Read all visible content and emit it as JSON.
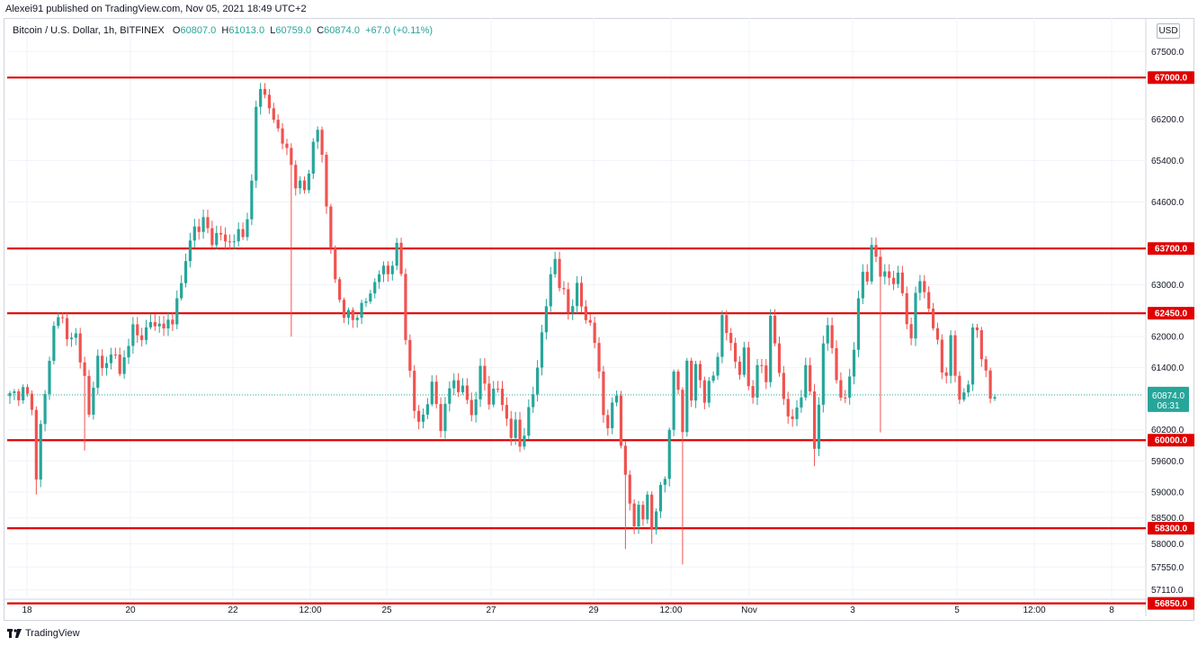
{
  "publisher_line": "Alexei91 published on TradingView.com, Nov 05, 2021 18:49 UTC+2",
  "legend": {
    "symbol": "Bitcoin / U.S. Dollar, 1h, BITFINEX",
    "open_label": "O",
    "open": "60807.0",
    "high_label": "H",
    "high": "61013.0",
    "low_label": "L",
    "low": "60759.0",
    "close_label": "C",
    "close": "60874.0",
    "change": "+67.0 (+0.11%)"
  },
  "currency_badge": "USD",
  "footer": {
    "brand": "TradingView",
    "icon": "tradingview-logo-icon"
  },
  "colors": {
    "up": "#26a69a",
    "down": "#ef5350",
    "level_line": "#e00000",
    "last_price": "#26a69a"
  },
  "chart_data": {
    "type": "candlestick",
    "symbol": "BTCUSD",
    "timeframe": "1h",
    "ylim": [
      56600,
      68150
    ],
    "y_ticks": [
      67500,
      66200,
      65400,
      64600,
      63000,
      62000,
      61400,
      60200,
      59600,
      59000,
      58500,
      58000,
      57550,
      57110
    ],
    "x_ticks": [
      "18",
      "20",
      "22",
      "12:00",
      "25",
      "27",
      "29",
      "12:00",
      "Nov",
      "3",
      "5",
      "12:00",
      "8"
    ],
    "levels": [
      67000,
      63700,
      62450,
      60000,
      58300,
      56850
    ],
    "level_labels": [
      "67000.0",
      "63700.0",
      "62450.0",
      "60000.0",
      "58300.0",
      "56850.0"
    ],
    "last_price": 60874,
    "last_price_label": "60874.0",
    "countdown": "06:31",
    "close_path": [
      [
        0,
        60850
      ],
      [
        3,
        60950
      ],
      [
        5,
        60700
      ],
      [
        6,
        59200
      ],
      [
        7,
        60300
      ],
      [
        9,
        61500
      ],
      [
        10,
        62300
      ],
      [
        12,
        62300
      ],
      [
        14,
        61900
      ],
      [
        15,
        62000
      ],
      [
        17,
        61200
      ],
      [
        18,
        60500
      ],
      [
        19,
        61000
      ],
      [
        20,
        61600
      ],
      [
        22,
        61400
      ],
      [
        24,
        61800
      ],
      [
        25,
        61200
      ],
      [
        27,
        61900
      ],
      [
        28,
        62200
      ],
      [
        30,
        61900
      ],
      [
        32,
        62400
      ],
      [
        33,
        62100
      ],
      [
        35,
        62300
      ],
      [
        37,
        62200
      ],
      [
        38,
        62800
      ],
      [
        39,
        63000
      ],
      [
        40,
        63500
      ],
      [
        42,
        64100
      ],
      [
        44,
        64200
      ],
      [
        46,
        63900
      ],
      [
        48,
        63950
      ],
      [
        50,
        63800
      ],
      [
        52,
        64000
      ],
      [
        53,
        63900
      ],
      [
        55,
        64900
      ],
      [
        56,
        66400
      ],
      [
        57,
        66900
      ],
      [
        58,
        66600
      ],
      [
        60,
        66200
      ],
      [
        62,
        65800
      ],
      [
        64,
        65300
      ],
      [
        65,
        65000
      ],
      [
        67,
        64800
      ],
      [
        69,
        65700
      ],
      [
        70,
        66000
      ],
      [
        71,
        65500
      ],
      [
        72,
        64500
      ],
      [
        73,
        63800
      ],
      [
        74,
        63000
      ],
      [
        75,
        62700
      ],
      [
        76,
        62500
      ],
      [
        78,
        62300
      ],
      [
        80,
        62600
      ],
      [
        82,
        62800
      ],
      [
        84,
        63300
      ],
      [
        86,
        63200
      ],
      [
        87,
        63500
      ],
      [
        88,
        63700
      ],
      [
        89,
        63200
      ],
      [
        90,
        62000
      ],
      [
        91,
        61300
      ],
      [
        92,
        60600
      ],
      [
        93,
        60300
      ],
      [
        94,
        60500
      ],
      [
        95,
        60800
      ],
      [
        96,
        61000
      ],
      [
        97,
        60700
      ],
      [
        98,
        60300
      ],
      [
        99,
        60600
      ],
      [
        100,
        61000
      ],
      [
        101,
        61200
      ],
      [
        102,
        60900
      ],
      [
        103,
        61100
      ],
      [
        104,
        60700
      ],
      [
        105,
        60500
      ],
      [
        106,
        60900
      ],
      [
        107,
        61300
      ],
      [
        108,
        61100
      ],
      [
        109,
        60800
      ],
      [
        110,
        60900
      ],
      [
        111,
        61000
      ],
      [
        112,
        60700
      ],
      [
        113,
        60400
      ],
      [
        114,
        60100
      ],
      [
        115,
        60300
      ],
      [
        116,
        59900
      ],
      [
        117,
        60200
      ],
      [
        118,
        60500
      ],
      [
        119,
        60900
      ],
      [
        120,
        61500
      ],
      [
        121,
        62000
      ],
      [
        122,
        62600
      ],
      [
        123,
        63200
      ],
      [
        124,
        63500
      ],
      [
        125,
        63000
      ],
      [
        126,
        62800
      ],
      [
        127,
        62500
      ],
      [
        128,
        62700
      ],
      [
        129,
        62900
      ],
      [
        130,
        62600
      ],
      [
        131,
        62400
      ],
      [
        132,
        62200
      ],
      [
        133,
        61900
      ],
      [
        134,
        61300
      ],
      [
        135,
        60500
      ],
      [
        136,
        60300
      ],
      [
        137,
        60600
      ],
      [
        138,
        60900
      ],
      [
        139,
        60000
      ],
      [
        140,
        59200
      ],
      [
        141,
        58800
      ],
      [
        142,
        58400
      ],
      [
        143,
        58700
      ],
      [
        144,
        58500
      ],
      [
        145,
        58900
      ],
      [
        146,
        58300
      ],
      [
        147,
        58700
      ],
      [
        148,
        59000
      ],
      [
        149,
        59300
      ],
      [
        150,
        60300
      ],
      [
        151,
        61200
      ],
      [
        152,
        61000
      ],
      [
        153,
        60200
      ],
      [
        154,
        61500
      ],
      [
        155,
        60800
      ],
      [
        156,
        61400
      ],
      [
        157,
        61200
      ],
      [
        158,
        60800
      ],
      [
        159,
        61000
      ],
      [
        160,
        61300
      ],
      [
        161,
        61700
      ],
      [
        162,
        62300
      ],
      [
        163,
        62100
      ],
      [
        164,
        61900
      ],
      [
        165,
        61500
      ],
      [
        166,
        61300
      ],
      [
        167,
        61700
      ],
      [
        168,
        61100
      ],
      [
        169,
        60900
      ],
      [
        170,
        61300
      ],
      [
        171,
        61500
      ],
      [
        172,
        61200
      ],
      [
        173,
        62300
      ],
      [
        174,
        61900
      ],
      [
        175,
        61300
      ],
      [
        176,
        60800
      ],
      [
        177,
        60500
      ],
      [
        178,
        60300
      ],
      [
        179,
        60700
      ],
      [
        180,
        60900
      ],
      [
        181,
        61300
      ],
      [
        182,
        61000
      ],
      [
        183,
        59900
      ],
      [
        184,
        60600
      ],
      [
        185,
        61900
      ],
      [
        186,
        62200
      ],
      [
        187,
        61800
      ],
      [
        188,
        61200
      ],
      [
        189,
        60700
      ],
      [
        190,
        60900
      ],
      [
        191,
        61300
      ],
      [
        192,
        61600
      ],
      [
        193,
        62800
      ],
      [
        194,
        63300
      ],
      [
        195,
        63000
      ],
      [
        196,
        63800
      ],
      [
        197,
        63500
      ],
      [
        198,
        63200
      ],
      [
        199,
        63300
      ],
      [
        200,
        63000
      ],
      [
        201,
        63100
      ],
      [
        202,
        63300
      ],
      [
        203,
        62700
      ],
      [
        204,
        62300
      ],
      [
        205,
        62000
      ],
      [
        206,
        62800
      ],
      [
        207,
        63100
      ],
      [
        208,
        62800
      ],
      [
        209,
        62600
      ],
      [
        210,
        62200
      ],
      [
        211,
        61800
      ],
      [
        212,
        61400
      ],
      [
        213,
        61300
      ],
      [
        214,
        61900
      ],
      [
        215,
        61300
      ],
      [
        216,
        60800
      ],
      [
        217,
        60900
      ],
      [
        218,
        61100
      ],
      [
        219,
        62100
      ],
      [
        220,
        62200
      ],
      [
        221,
        61600
      ],
      [
        222,
        61200
      ],
      [
        223,
        60900
      ],
      [
        224,
        60880
      ]
    ],
    "n_candles": 225
  }
}
